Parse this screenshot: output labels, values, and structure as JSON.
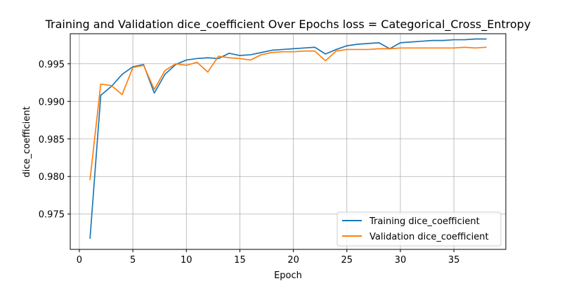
{
  "chart_data": {
    "type": "line",
    "title": "Training and Validation dice_coefficient Over Epochs loss = Categorical_Cross_Entropy",
    "xlabel": "Epoch",
    "ylabel": "dice_coefficient",
    "xlim": [
      -0.85,
      39.85
    ],
    "ylim": [
      0.9703,
      0.999
    ],
    "xticks": [
      0,
      5,
      10,
      15,
      20,
      25,
      30,
      35
    ],
    "xtick_labels": [
      "0",
      "5",
      "10",
      "15",
      "20",
      "25",
      "30",
      "35"
    ],
    "yticks": [
      0.975,
      0.98,
      0.985,
      0.99,
      0.995
    ],
    "ytick_labels": [
      "0.975",
      "0.980",
      "0.985",
      "0.990",
      "0.995"
    ],
    "grid": true,
    "legend_position": "lower-right",
    "x": [
      1,
      2,
      3,
      4,
      5,
      6,
      7,
      8,
      9,
      10,
      11,
      12,
      13,
      14,
      15,
      16,
      17,
      18,
      19,
      20,
      21,
      22,
      23,
      24,
      25,
      26,
      27,
      28,
      29,
      30,
      31,
      32,
      33,
      34,
      35,
      36,
      37,
      38
    ],
    "series": [
      {
        "name": "Training dice_coefficient",
        "color": "#1f77b4",
        "values": [
          0.9718,
          0.9908,
          0.992,
          0.9936,
          0.9946,
          0.9949,
          0.9911,
          0.9936,
          0.9949,
          0.9955,
          0.9957,
          0.9958,
          0.9957,
          0.9964,
          0.9961,
          0.9962,
          0.9965,
          0.9968,
          0.9969,
          0.997,
          0.9971,
          0.9972,
          0.9963,
          0.9969,
          0.9974,
          0.9976,
          0.9977,
          0.9978,
          0.997,
          0.9978,
          0.9979,
          0.998,
          0.9981,
          0.9981,
          0.9982,
          0.9982,
          0.9983,
          0.9983
        ]
      },
      {
        "name": "Validation dice_coefficient",
        "color": "#ff7f0e",
        "values": [
          0.9796,
          0.9923,
          0.9921,
          0.9909,
          0.9945,
          0.9948,
          0.9916,
          0.9941,
          0.995,
          0.9948,
          0.9952,
          0.9939,
          0.996,
          0.9958,
          0.9957,
          0.9955,
          0.9962,
          0.9965,
          0.9966,
          0.9966,
          0.9967,
          0.9967,
          0.9954,
          0.9967,
          0.9969,
          0.9969,
          0.9969,
          0.997,
          0.997,
          0.9971,
          0.9971,
          0.9971,
          0.9971,
          0.9971,
          0.9971,
          0.9972,
          0.9971,
          0.9972
        ]
      }
    ]
  }
}
